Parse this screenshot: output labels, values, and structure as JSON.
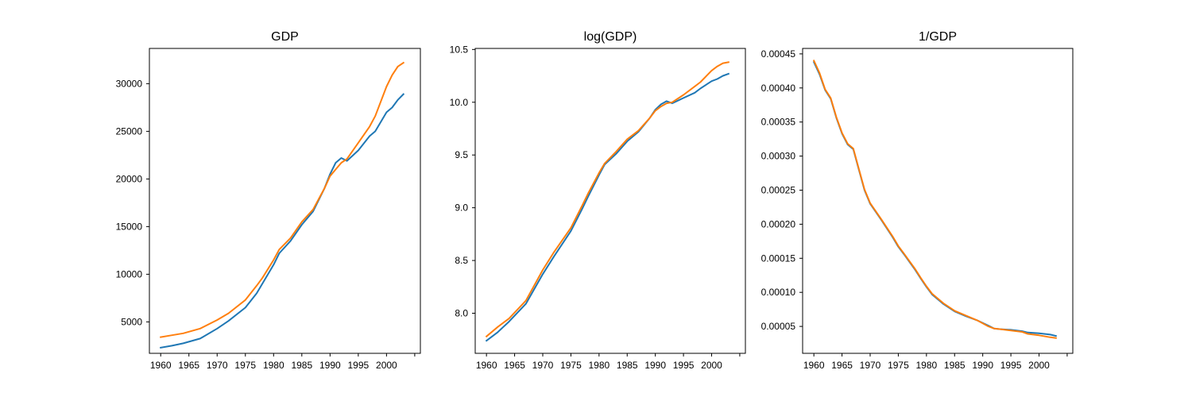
{
  "chart_data": [
    {
      "type": "line",
      "title": "GDP",
      "xlabel": "",
      "ylabel": "",
      "xlim": [
        1958,
        2006
      ],
      "ylim": [
        1700,
        33700
      ],
      "xticks": [
        1960,
        1965,
        1970,
        1975,
        1980,
        1985,
        1990,
        1995,
        2000
      ],
      "xtick_labels": [
        "1960",
        "1965",
        "1970",
        "1975",
        "1980",
        "1985",
        "1990",
        "1995",
        "2000",
        ""
      ],
      "yticks": [
        5000,
        10000,
        15000,
        20000,
        25000,
        30000
      ],
      "ytick_labels": [
        "5000",
        "10000",
        "15000",
        "20000",
        "25000",
        "30000"
      ],
      "grid": false,
      "x": [
        1960,
        1962,
        1964,
        1967,
        1970,
        1972,
        1975,
        1977,
        1978,
        1980,
        1981,
        1983,
        1985,
        1987,
        1989,
        1990,
        1991,
        1992,
        1993,
        1995,
        1997,
        1998,
        2000,
        2001,
        2002,
        2003
      ],
      "series": [
        {
          "color": "#1f77b4",
          "values": [
            2300,
            2500,
            2750,
            3250,
            4300,
            5100,
            6500,
            8000,
            9000,
            11000,
            12200,
            13500,
            15200,
            16600,
            19000,
            20500,
            21700,
            22200,
            21900,
            23000,
            24500,
            25000,
            27000,
            27500,
            28300,
            28900
          ]
        },
        {
          "color": "#ff7f0e",
          "values": [
            3400,
            3600,
            3800,
            4300,
            5200,
            5900,
            7300,
            8800,
            9600,
            11500,
            12600,
            13800,
            15500,
            16800,
            19000,
            20300,
            21000,
            21700,
            22100,
            23800,
            25500,
            26600,
            29700,
            30900,
            31800,
            32200
          ]
        }
      ]
    },
    {
      "type": "line",
      "title": "log(GDP)",
      "xlabel": "",
      "ylabel": "",
      "xlim": [
        1958,
        2006
      ],
      "ylim": [
        7.62,
        10.51
      ],
      "xticks": [
        1960,
        1965,
        1970,
        1975,
        1980,
        1985,
        1990,
        1995,
        2000
      ],
      "xtick_labels": [
        "1960",
        "1965",
        "1970",
        "1975",
        "1980",
        "1985",
        "1990",
        "1995",
        "2000",
        ""
      ],
      "yticks": [
        8.0,
        8.5,
        9.0,
        9.5,
        10.0,
        10.5
      ],
      "ytick_labels": [
        "8.0",
        "8.5",
        "9.0",
        "9.5",
        "10.0",
        "10.5"
      ],
      "grid": false,
      "x": [
        1960,
        1962,
        1964,
        1967,
        1970,
        1972,
        1975,
        1977,
        1978,
        1980,
        1981,
        1983,
        1985,
        1987,
        1989,
        1990,
        1991,
        1992,
        1993,
        1995,
        1997,
        1998,
        2000,
        2001,
        2002,
        2003
      ],
      "series": [
        {
          "color": "#1f77b4",
          "values": [
            7.74,
            7.82,
            7.92,
            8.09,
            8.37,
            8.54,
            8.78,
            8.99,
            9.1,
            9.31,
            9.41,
            9.51,
            9.63,
            9.72,
            9.85,
            9.93,
            9.98,
            10.01,
            9.99,
            10.04,
            10.09,
            10.13,
            10.2,
            10.22,
            10.25,
            10.27
          ]
        },
        {
          "color": "#ff7f0e",
          "values": [
            7.78,
            7.87,
            7.95,
            8.12,
            8.41,
            8.58,
            8.81,
            9.02,
            9.13,
            9.33,
            9.42,
            9.53,
            9.65,
            9.73,
            9.85,
            9.92,
            9.96,
            9.99,
            10.0,
            10.07,
            10.15,
            10.19,
            10.3,
            10.34,
            10.37,
            10.38
          ]
        }
      ]
    },
    {
      "type": "line",
      "title": "1/GDP",
      "xlabel": "",
      "ylabel": "",
      "xlim": [
        1958,
        2006
      ],
      "ylim": [
        1.05e-05,
        0.000458
      ],
      "xticks": [
        1960,
        1965,
        1970,
        1975,
        1980,
        1985,
        1990,
        1995,
        2000
      ],
      "xtick_labels": [
        "1960",
        "1965",
        "1970",
        "1975",
        "1980",
        "1985",
        "1990",
        "1995",
        "2000",
        ""
      ],
      "yticks": [
        5e-05,
        0.0001,
        0.00015,
        0.0002,
        0.00025,
        0.0003,
        0.00035,
        0.0004,
        0.00045
      ],
      "ytick_labels": [
        "0.00005",
        "0.00010",
        "0.00015",
        "0.00020",
        "0.00025",
        "0.00030",
        "0.00035",
        "0.00040",
        "0.00045"
      ],
      "grid": false,
      "x": [
        1960,
        1961,
        1962,
        1963,
        1964,
        1965,
        1966,
        1967,
        1968,
        1969,
        1970,
        1972,
        1974,
        1975,
        1976,
        1978,
        1979,
        1980,
        1981,
        1983,
        1985,
        1987,
        1989,
        1991,
        1992,
        1993,
        1995,
        1997,
        1998,
        2000,
        2002,
        2003
      ],
      "series": [
        {
          "color": "#1f77b4",
          "values": [
            0.000438,
            0.00042,
            0.000397,
            0.000384,
            0.000356,
            0.000333,
            0.000317,
            0.00031,
            0.00028,
            0.00025,
            0.00023,
            0.000206,
            0.000181,
            0.000167,
            0.000156,
            0.000133,
            0.00012,
            0.000108,
            9.7e-05,
            8.3e-05,
            7.2e-05,
            6.5e-05,
            5.9e-05,
            5.1e-05,
            4.7e-05,
            4.6e-05,
            4.5e-05,
            4.3e-05,
            4.1e-05,
            4e-05,
            3.8e-05,
            3.6e-05
          ]
        },
        {
          "color": "#ff7f0e",
          "values": [
            0.00044,
            0.000422,
            0.000398,
            0.000385,
            0.000357,
            0.000334,
            0.000318,
            0.000311,
            0.000281,
            0.000251,
            0.000231,
            0.000207,
            0.000182,
            0.000168,
            0.000157,
            0.000134,
            0.000121,
            0.000109,
            9.8e-05,
            8.4e-05,
            7.3e-05,
            6.6e-05,
            5.9e-05,
            5e-05,
            4.7e-05,
            4.6e-05,
            4.4e-05,
            4.2e-05,
            3.9e-05,
            3.7e-05,
            3.4e-05,
            3.3e-05
          ]
        }
      ]
    }
  ]
}
